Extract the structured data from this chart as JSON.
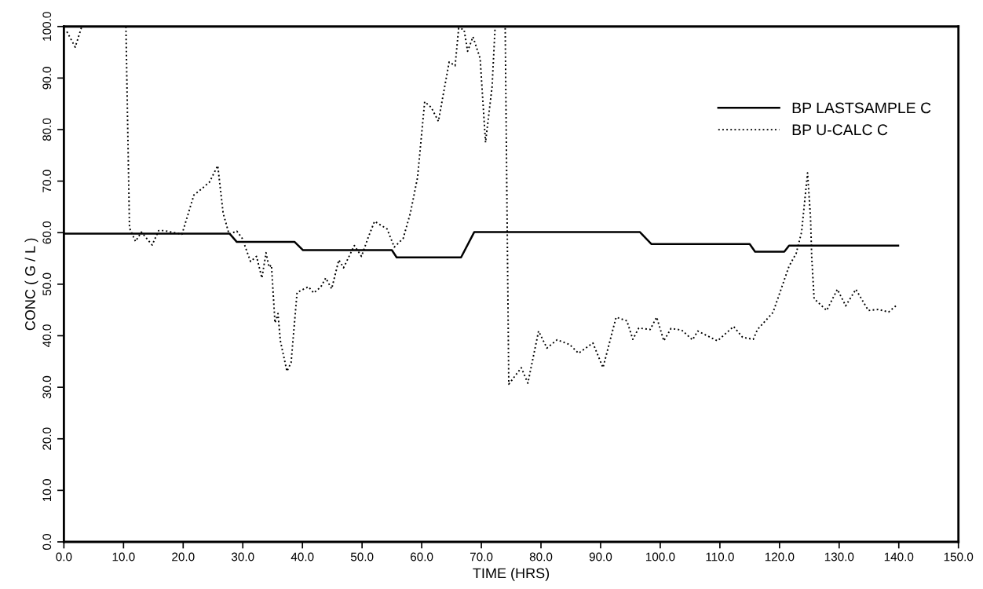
{
  "chart_data": {
    "type": "line",
    "xlabel": "TIME (HRS)",
    "ylabel": "CONC ( G / L )",
    "xlim": [
      0,
      150
    ],
    "ylim": [
      0,
      100
    ],
    "xticks": [
      {
        "value": 0,
        "label": "0.0"
      },
      {
        "value": 10,
        "label": "10.0"
      },
      {
        "value": 20,
        "label": "20.0"
      },
      {
        "value": 30,
        "label": "30.0"
      },
      {
        "value": 40,
        "label": "40.0"
      },
      {
        "value": 50,
        "label": "50.0"
      },
      {
        "value": 60,
        "label": "60.0"
      },
      {
        "value": 70,
        "label": "70.0"
      },
      {
        "value": 80,
        "label": "80.0"
      },
      {
        "value": 90,
        "label": "90.0"
      },
      {
        "value": 100,
        "label": "100.0"
      },
      {
        "value": 110,
        "label": "110.0"
      },
      {
        "value": 120,
        "label": "120.0"
      },
      {
        "value": 130,
        "label": "130.0"
      },
      {
        "value": 140,
        "label": "140.0"
      },
      {
        "value": 150,
        "label": "150.0"
      }
    ],
    "yticks": [
      {
        "value": 0,
        "label": "0.0"
      },
      {
        "value": 10,
        "label": "10.0"
      },
      {
        "value": 20,
        "label": "20.0"
      },
      {
        "value": 30,
        "label": "30.0"
      },
      {
        "value": 40,
        "label": "40.0"
      },
      {
        "value": 50,
        "label": "50.0"
      },
      {
        "value": 60,
        "label": "60.0"
      },
      {
        "value": 70,
        "label": "70.0"
      },
      {
        "value": 80,
        "label": "80.0"
      },
      {
        "value": 90,
        "label": "90.0"
      },
      {
        "value": 100,
        "label": "100.0"
      }
    ],
    "grid": false,
    "legend": "top right",
    "marker": "none",
    "series": [
      {
        "name": "BP LASTSAMPLE C",
        "color": "#000000",
        "line_style": "solid",
        "x": [
          0,
          27.8,
          29.0,
          38.7,
          40.1,
          55.0,
          55.8,
          66.6,
          68.8,
          96.6,
          98.5,
          115.0,
          115.9,
          120.8,
          121.6,
          139.9
        ],
        "values": [
          59.8,
          59.8,
          58.2,
          58.2,
          56.6,
          56.6,
          55.2,
          55.2,
          60.1,
          60.1,
          57.8,
          57.8,
          56.3,
          56.3,
          57.5,
          57.5
        ]
      },
      {
        "name": "BP U-CALC C",
        "color": "#000000",
        "line_style": "dotted",
        "x": [
          0.5,
          1.9,
          3.0,
          6.0,
          10.4,
          11.0,
          12.0,
          13.0,
          14.8,
          15.9,
          16.8,
          19.8,
          21.8,
          23.3,
          24.4,
          25.8,
          26.7,
          27.7,
          29.0,
          29.9,
          31.3,
          32.3,
          33.2,
          33.9,
          34.4,
          34.8,
          35.4,
          35.9,
          36.3,
          37.4,
          38.1,
          39.1,
          41.0,
          41.9,
          43.1,
          43.9,
          44.9,
          46.1,
          46.9,
          48.7,
          49.9,
          51.1,
          52.1,
          54.2,
          55.4,
          56.9,
          58.1,
          59.3,
          60.5,
          61.6,
          62.8,
          64.6,
          65.6,
          66.2,
          67.1,
          67.7,
          68.6,
          69.8,
          70.7,
          71.8,
          72.3,
          73.0,
          74.0,
          74.6,
          76.7,
          77.8,
          79.6,
          81.0,
          82.7,
          84.8,
          86.3,
          88.7,
          90.4,
          92.6,
          94.4,
          95.4,
          96.4,
          98.3,
          99.4,
          100.6,
          101.8,
          103.6,
          105.4,
          106.3,
          109.6,
          112.3,
          113.8,
          115.6,
          116.3,
          118.9,
          121.6,
          122.8,
          123.7,
          124.7,
          125.2,
          125.4,
          125.8,
          127.9,
          129.7,
          131.1,
          132.8,
          134.9,
          136.6,
          138.3,
          139.7
        ],
        "values": [
          99,
          96,
          100,
          null,
          100,
          60.9,
          58.3,
          60.1,
          57.6,
          60.4,
          60.4,
          59.7,
          67.3,
          68.7,
          69.8,
          73.0,
          63.8,
          59.7,
          60.3,
          58.9,
          54.4,
          55.4,
          51.2,
          56.1,
          53.3,
          53.7,
          42.5,
          44.3,
          39.0,
          33.1,
          34.8,
          48.4,
          49.5,
          48.3,
          49.5,
          51.2,
          49.1,
          54.7,
          53.2,
          57.5,
          55.4,
          59.3,
          62.2,
          60.7,
          57.2,
          58.9,
          63.8,
          70.7,
          85.4,
          84.3,
          81.6,
          93.1,
          92.4,
          99.7,
          99.4,
          95.2,
          98.0,
          93.8,
          77.5,
          88.3,
          99.7,
          null,
          99.7,
          30.6,
          33.8,
          30.8,
          40.9,
          37.6,
          39.2,
          38.3,
          36.6,
          38.6,
          33.8,
          43.6,
          42.9,
          39.3,
          41.5,
          41.2,
          43.6,
          39.0,
          41.4,
          41.1,
          39.2,
          40.9,
          39.0,
          41.8,
          39.7,
          39.3,
          41.2,
          44.5,
          53.5,
          56.0,
          60.1,
          71.6,
          62.9,
          55.3,
          47.2,
          44.9,
          49.0,
          45.8,
          49.0,
          44.9,
          45.1,
          44.6,
          46.0
        ]
      }
    ]
  }
}
